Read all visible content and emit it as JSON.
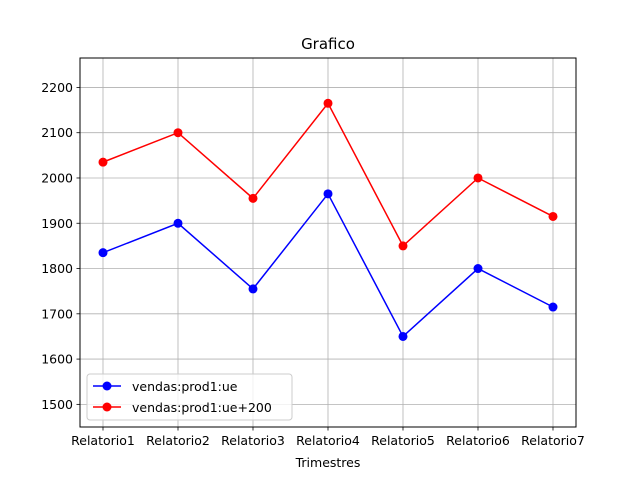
{
  "chart_data": {
    "type": "line",
    "title": "Grafico",
    "xlabel": "Trimestres",
    "ylabel": "",
    "categories": [
      "Relatorio1",
      "Relatorio2",
      "Relatorio3",
      "Relatorio4",
      "Relatorio5",
      "Relatorio6",
      "Relatorio7"
    ],
    "series": [
      {
        "name": "vendas:prod1:ue",
        "values": [
          1835,
          1900,
          1755,
          1965,
          1650,
          1800,
          1715
        ],
        "color": "#0000ff",
        "marker": "circle"
      },
      {
        "name": "vendas:prod1:ue+200",
        "values": [
          2035,
          2100,
          1955,
          2165,
          1850,
          2000,
          1915
        ],
        "color": "#ff0000",
        "marker": "circle"
      }
    ],
    "ylim": [
      1450,
      2265
    ],
    "yticks": [
      1500,
      1600,
      1700,
      1800,
      1900,
      2000,
      2100,
      2200
    ],
    "grid": true,
    "legend_position": "lower-left"
  }
}
